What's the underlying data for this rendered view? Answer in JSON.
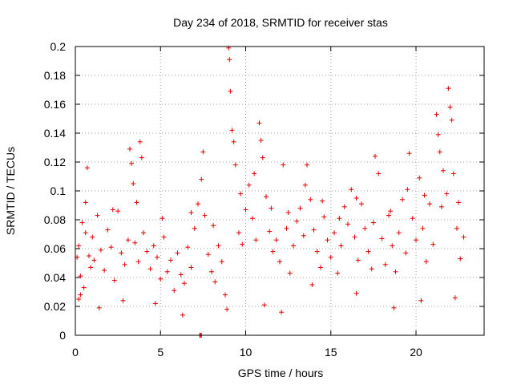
{
  "chart_data": {
    "type": "scatter",
    "title": "Day 234 of 2018, SRMTID for receiver stas",
    "xlabel": "GPS time / hours",
    "ylabel": "SRMTID / TECUs",
    "xlim": [
      0,
      24
    ],
    "ylim": [
      0,
      0.2
    ],
    "xticks": [
      0,
      5,
      10,
      15,
      20
    ],
    "xtick_labels": [
      "0",
      "5",
      "10",
      "15",
      "20"
    ],
    "yticks": [
      0,
      0.02,
      0.04,
      0.06,
      0.08,
      0.1,
      0.12,
      0.14,
      0.16,
      0.18,
      0.2
    ],
    "ytick_labels": [
      "0",
      "0.02",
      "0.04",
      "0.06",
      "0.08",
      "0.1",
      "0.12",
      "0.14",
      "0.16",
      "0.18",
      "0.2"
    ],
    "grid": true,
    "marker": "+",
    "color": "#e00000",
    "series": [
      {
        "name": "stas",
        "points": [
          [
            0.1,
            0.054
          ],
          [
            0.2,
            0.062
          ],
          [
            0.3,
            0.041
          ],
          [
            0.4,
            0.078
          ],
          [
            0.5,
            0.033
          ],
          [
            0.6,
            0.071
          ],
          [
            0.7,
            0.116
          ],
          [
            0.8,
            0.055
          ],
          [
            0.9,
            0.047
          ],
          [
            1.0,
            0.068
          ],
          [
            1.1,
            0.052
          ],
          [
            1.3,
            0.083
          ],
          [
            1.5,
            0.059
          ],
          [
            1.7,
            0.045
          ],
          [
            1.9,
            0.073
          ],
          [
            2.1,
            0.061
          ],
          [
            2.3,
            0.038
          ],
          [
            2.5,
            0.086
          ],
          [
            2.7,
            0.057
          ],
          [
            2.9,
            0.049
          ],
          [
            3.1,
            0.066
          ],
          [
            3.2,
            0.129
          ],
          [
            3.3,
            0.119
          ],
          [
            3.4,
            0.105
          ],
          [
            3.5,
            0.064
          ],
          [
            3.7,
            0.051
          ],
          [
            3.8,
            0.134
          ],
          [
            3.9,
            0.123
          ],
          [
            4.0,
            0.071
          ],
          [
            4.2,
            0.058
          ],
          [
            4.4,
            0.046
          ],
          [
            4.6,
            0.062
          ],
          [
            4.8,
            0.054
          ],
          [
            5.0,
            0.039
          ],
          [
            5.2,
            0.068
          ],
          [
            5.4,
            0.044
          ],
          [
            5.6,
            0.052
          ],
          [
            5.8,
            0.031
          ],
          [
            6.0,
            0.057
          ],
          [
            6.2,
            0.042
          ],
          [
            6.4,
            0.036
          ],
          [
            6.6,
            0.061
          ],
          [
            6.8,
            0.047
          ],
          [
            7.0,
            0.074
          ],
          [
            7.2,
            0.091
          ],
          [
            7.4,
            0.108
          ],
          [
            7.5,
            0.127
          ],
          [
            7.6,
            0.083
          ],
          [
            7.8,
            0.056
          ],
          [
            8.0,
            0.044
          ],
          [
            8.2,
            0.037
          ],
          [
            8.4,
            0.062
          ],
          [
            8.6,
            0.051
          ],
          [
            8.8,
            0.028
          ],
          [
            9.0,
            0.199
          ],
          [
            9.05,
            0.191
          ],
          [
            9.1,
            0.169
          ],
          [
            9.2,
            0.142
          ],
          [
            9.3,
            0.134
          ],
          [
            9.4,
            0.118
          ],
          [
            9.6,
            0.071
          ],
          [
            9.8,
            0.063
          ],
          [
            10.0,
            0.087
          ],
          [
            10.2,
            0.104
          ],
          [
            10.4,
            0.081
          ],
          [
            10.6,
            0.066
          ],
          [
            10.8,
            0.147
          ],
          [
            10.9,
            0.135
          ],
          [
            11.0,
            0.123
          ],
          [
            11.2,
            0.096
          ],
          [
            11.4,
            0.072
          ],
          [
            11.6,
            0.058
          ],
          [
            11.8,
            0.066
          ],
          [
            12.0,
            0.051
          ],
          [
            12.2,
            0.118
          ],
          [
            12.4,
            0.074
          ],
          [
            12.6,
            0.043
          ],
          [
            12.8,
            0.062
          ],
          [
            13.0,
            0.079
          ],
          [
            13.2,
            0.088
          ],
          [
            13.4,
            0.069
          ],
          [
            13.6,
            0.118
          ],
          [
            13.8,
            0.094
          ],
          [
            14.0,
            0.073
          ],
          [
            14.2,
            0.058
          ],
          [
            14.4,
            0.047
          ],
          [
            14.6,
            0.082
          ],
          [
            14.8,
            0.066
          ],
          [
            15.0,
            0.054
          ],
          [
            15.2,
            0.071
          ],
          [
            15.4,
            0.043
          ],
          [
            15.6,
            0.062
          ],
          [
            15.8,
            0.089
          ],
          [
            16.0,
            0.077
          ],
          [
            16.2,
            0.101
          ],
          [
            16.4,
            0.068
          ],
          [
            16.6,
            0.052
          ],
          [
            16.8,
            0.091
          ],
          [
            17.0,
            0.074
          ],
          [
            17.2,
            0.058
          ],
          [
            17.4,
            0.046
          ],
          [
            17.6,
            0.124
          ],
          [
            17.8,
            0.112
          ],
          [
            18.0,
            0.067
          ],
          [
            18.2,
            0.049
          ],
          [
            18.4,
            0.083
          ],
          [
            18.6,
            0.062
          ],
          [
            18.8,
            0.044
          ],
          [
            19.0,
            0.071
          ],
          [
            19.2,
            0.094
          ],
          [
            19.4,
            0.057
          ],
          [
            19.6,
            0.126
          ],
          [
            19.8,
            0.081
          ],
          [
            20.0,
            0.066
          ],
          [
            20.2,
            0.109
          ],
          [
            20.4,
            0.074
          ],
          [
            20.6,
            0.051
          ],
          [
            20.8,
            0.091
          ],
          [
            21.0,
            0.063
          ],
          [
            21.2,
            0.153
          ],
          [
            21.3,
            0.139
          ],
          [
            21.4,
            0.127
          ],
          [
            21.6,
            0.114
          ],
          [
            21.8,
            0.098
          ],
          [
            21.9,
            0.171
          ],
          [
            22.0,
            0.158
          ],
          [
            22.1,
            0.149
          ],
          [
            22.2,
            0.112
          ],
          [
            22.4,
            0.074
          ],
          [
            22.6,
            0.053
          ],
          [
            22.8,
            0.068
          ],
          [
            0.3,
            0.028
          ],
          [
            1.4,
            0.019
          ],
          [
            2.8,
            0.024
          ],
          [
            4.7,
            0.022
          ],
          [
            6.3,
            0.014
          ],
          [
            7.3,
            0.0
          ],
          [
            7.35,
            0.0
          ],
          [
            7.4,
            0.0
          ],
          [
            8.9,
            0.018
          ],
          [
            11.1,
            0.021
          ],
          [
            12.1,
            0.016
          ],
          [
            13.9,
            0.035
          ],
          [
            16.5,
            0.029
          ],
          [
            18.7,
            0.019
          ],
          [
            20.3,
            0.024
          ],
          [
            22.3,
            0.026
          ],
          [
            0.2,
            0.025
          ],
          [
            0.6,
            0.092
          ],
          [
            2.2,
            0.087
          ],
          [
            3.6,
            0.092
          ],
          [
            5.1,
            0.081
          ],
          [
            6.8,
            0.085
          ],
          [
            8.1,
            0.076
          ],
          [
            9.7,
            0.098
          ],
          [
            10.5,
            0.112
          ],
          [
            11.5,
            0.088
          ],
          [
            12.5,
            0.085
          ],
          [
            13.5,
            0.104
          ],
          [
            14.5,
            0.093
          ],
          [
            15.5,
            0.081
          ],
          [
            16.5,
            0.095
          ],
          [
            17.5,
            0.078
          ],
          [
            18.5,
            0.086
          ],
          [
            19.5,
            0.101
          ],
          [
            20.5,
            0.097
          ],
          [
            21.5,
            0.089
          ],
          [
            22.5,
            0.092
          ]
        ]
      }
    ]
  }
}
